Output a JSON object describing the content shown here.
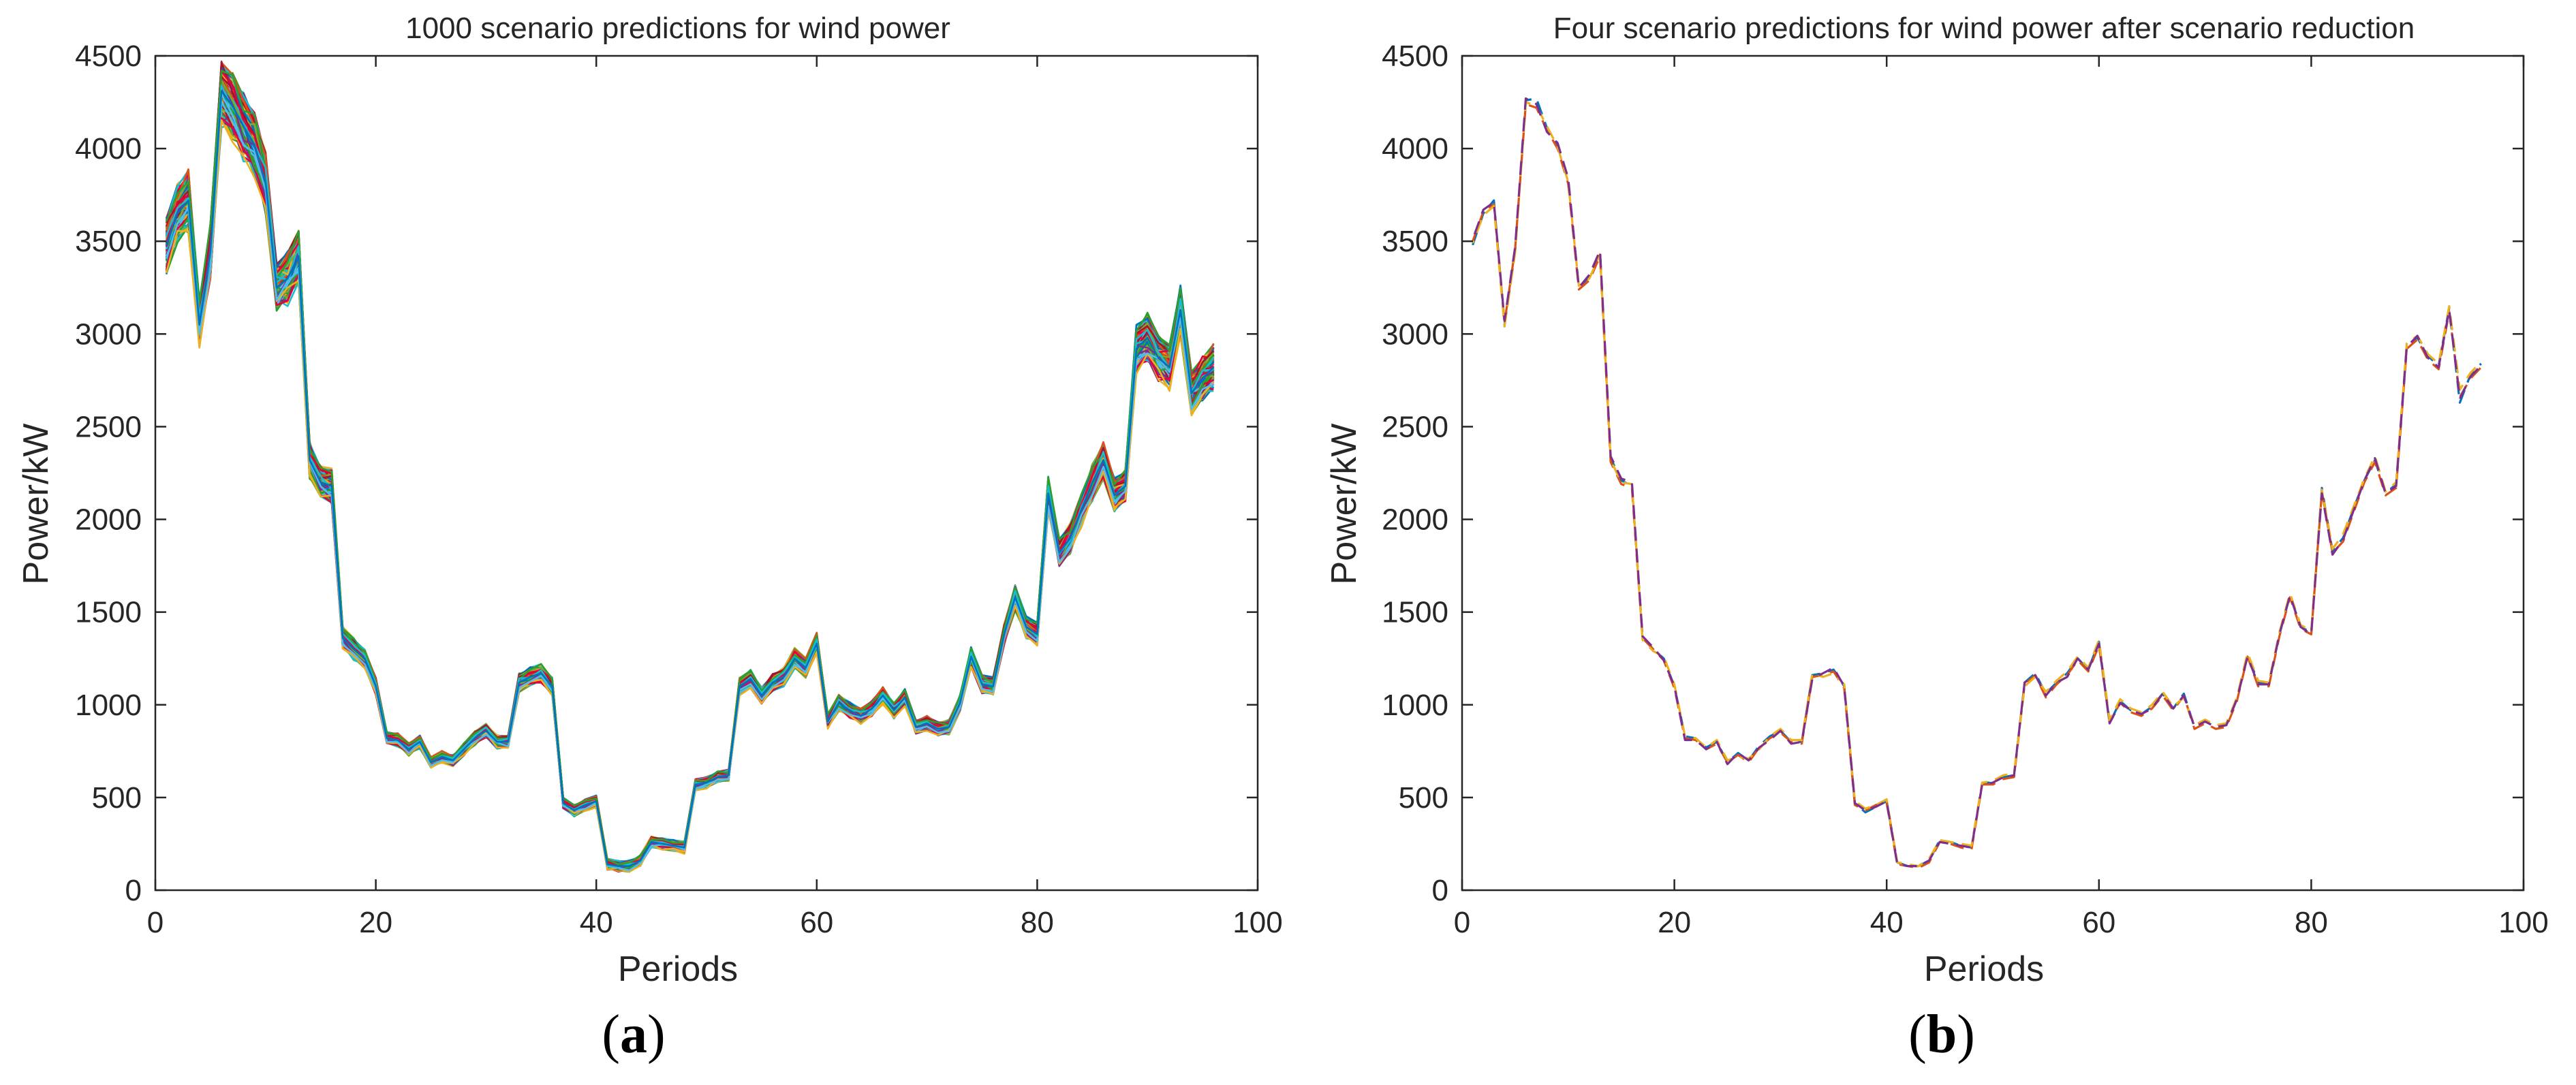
{
  "figure": {
    "caption_a": {
      "paren_open": "(",
      "letter": "a",
      "paren_close": ")"
    },
    "caption_b": {
      "paren_open": "(",
      "letter": "b",
      "paren_close": ")"
    }
  },
  "chart_data": [
    {
      "type": "line",
      "title": "1000 scenario predictions for wind power",
      "xlabel": "Periods",
      "ylabel": "Power/kW",
      "xlim": [
        0,
        100
      ],
      "ylim": [
        0,
        4500
      ],
      "xticks": [
        0,
        20,
        40,
        60,
        80,
        100
      ],
      "yticks": [
        0,
        500,
        1000,
        1500,
        2000,
        2500,
        3000,
        3500,
        4000,
        4500
      ],
      "grid": false,
      "legend": "none",
      "x_range": [
        1,
        96
      ],
      "scenario_count": 1000,
      "line_colors": [
        "#0072bd",
        "#d95319",
        "#edb120",
        "#7e2f8e",
        "#77ac30",
        "#4dbeee",
        "#a2142f",
        "#e8003c",
        "#2ca02c",
        "#17becf"
      ],
      "series": [
        {
          "values": [
            3480,
            3650,
            3720,
            3050,
            3450,
            4310,
            4230,
            4120,
            4020,
            3820,
            3250,
            3300,
            3420,
            2320,
            2200,
            2180,
            1360,
            1300,
            1250,
            1100,
            820,
            810,
            760,
            800,
            690,
            720,
            700,
            760,
            820,
            860,
            800,
            800,
            1120,
            1150,
            1170,
            1100,
            470,
            430,
            460,
            480,
            140,
            130,
            130,
            160,
            260,
            250,
            240,
            230,
            570,
            580,
            610,
            620,
            1100,
            1140,
            1050,
            1120,
            1150,
            1250,
            1200,
            1330,
            910,
            1010,
            970,
            940,
            980,
            1050,
            970,
            1040,
            880,
            900,
            870,
            880,
            1010,
            1260,
            1110,
            1100,
            1380,
            1580,
            1420,
            1380,
            2140,
            1820,
            1900,
            2050,
            2200,
            2320,
            2130,
            2180,
            2920,
            2980,
            2870,
            2820,
            3130,
            2680,
            2760,
            2820
          ]
        }
      ]
    },
    {
      "type": "line",
      "title": "Four scenario predictions for wind power after scenario reduction",
      "xlabel": "Periods",
      "ylabel": "Power/kW",
      "xlim": [
        0,
        100
      ],
      "ylim": [
        0,
        4500
      ],
      "xticks": [
        0,
        20,
        40,
        60,
        80,
        100
      ],
      "yticks": [
        0,
        500,
        1000,
        1500,
        2000,
        2500,
        3000,
        3500,
        4000,
        4500
      ],
      "grid": false,
      "legend": "none",
      "line_style": "dashed",
      "series": [
        {
          "color": "#0072bd",
          "values": [
            3480,
            3650,
            3720,
            3050,
            3450,
            4260,
            4270,
            4110,
            4020,
            3830,
            3250,
            3310,
            3440,
            2330,
            2210,
            2180,
            1370,
            1300,
            1250,
            1100,
            830,
            820,
            770,
            800,
            690,
            740,
            700,
            780,
            830,
            860,
            800,
            800,
            1160,
            1170,
            1190,
            1100,
            470,
            420,
            450,
            480,
            150,
            130,
            130,
            160,
            270,
            260,
            240,
            230,
            580,
            580,
            610,
            620,
            1120,
            1170,
            1060,
            1120,
            1170,
            1250,
            1190,
            1340,
            900,
            1020,
            970,
            950,
            990,
            1060,
            980,
            1060,
            880,
            910,
            880,
            890,
            1030,
            1270,
            1120,
            1110,
            1380,
            1590,
            1420,
            1390,
            2170,
            1830,
            1900,
            2060,
            2210,
            2320,
            2140,
            2190,
            2940,
            2980,
            2880,
            2830,
            3140,
            2630,
            2780,
            2840
          ]
        },
        {
          "color": "#d95319",
          "values": [
            3500,
            3660,
            3700,
            3060,
            3460,
            4240,
            4220,
            4100,
            4000,
            3810,
            3240,
            3290,
            3420,
            2310,
            2190,
            2170,
            1360,
            1300,
            1240,
            1090,
            820,
            810,
            760,
            790,
            690,
            730,
            690,
            770,
            820,
            850,
            800,
            790,
            1150,
            1160,
            1180,
            1090,
            460,
            430,
            460,
            470,
            140,
            130,
            120,
            150,
            260,
            250,
            230,
            220,
            570,
            570,
            600,
            610,
            1110,
            1160,
            1040,
            1110,
            1160,
            1240,
            1180,
            1320,
            910,
            1010,
            960,
            940,
            980,
            1050,
            970,
            1050,
            870,
            900,
            870,
            880,
            1020,
            1260,
            1100,
            1100,
            1370,
            1580,
            1410,
            1380,
            2150,
            1820,
            1880,
            2040,
            2200,
            2310,
            2130,
            2170,
            2920,
            2970,
            2860,
            2810,
            3120,
            2660,
            2760,
            2820
          ]
        },
        {
          "color": "#edb120",
          "values": [
            3490,
            3640,
            3690,
            3040,
            3440,
            4250,
            4230,
            4120,
            4010,
            3820,
            3260,
            3300,
            3430,
            2320,
            2200,
            2190,
            1350,
            1290,
            1260,
            1110,
            830,
            820,
            770,
            810,
            700,
            720,
            710,
            760,
            830,
            870,
            810,
            810,
            1170,
            1150,
            1170,
            1110,
            480,
            440,
            460,
            490,
            150,
            140,
            130,
            170,
            270,
            260,
            250,
            240,
            580,
            590,
            620,
            630,
            1100,
            1150,
            1070,
            1130,
            1180,
            1260,
            1200,
            1350,
            920,
            1030,
            980,
            960,
            1000,
            1070,
            990,
            1040,
            890,
            920,
            890,
            900,
            1040,
            1280,
            1130,
            1120,
            1390,
            1600,
            1430,
            1400,
            2160,
            1840,
            1920,
            2070,
            2220,
            2340,
            2150,
            2200,
            2950,
            2990,
            2890,
            2840,
            3150,
            2700,
            2790,
            2850
          ]
        },
        {
          "color": "#7e2f8e",
          "values": [
            3510,
            3670,
            3710,
            3070,
            3470,
            4270,
            4240,
            4090,
            4030,
            3840,
            3250,
            3320,
            3450,
            2340,
            2220,
            2200,
            1370,
            1310,
            1240,
            1100,
            810,
            810,
            760,
            800,
            680,
            740,
            700,
            770,
            810,
            860,
            790,
            800,
            1140,
            1170,
            1200,
            1100,
            470,
            430,
            450,
            480,
            140,
            130,
            130,
            160,
            260,
            250,
            240,
            230,
            570,
            580,
            610,
            620,
            1120,
            1160,
            1050,
            1120,
            1150,
            1250,
            1190,
            1330,
            900,
            1010,
            970,
            950,
            980,
            1060,
            980,
            1050,
            880,
            910,
            880,
            890,
            1030,
            1260,
            1110,
            1110,
            1380,
            1590,
            1420,
            1380,
            2140,
            1810,
            1890,
            2050,
            2210,
            2330,
            2140,
            2180,
            2930,
            2990,
            2870,
            2820,
            3130,
            2650,
            2770,
            2830
          ]
        }
      ]
    }
  ]
}
